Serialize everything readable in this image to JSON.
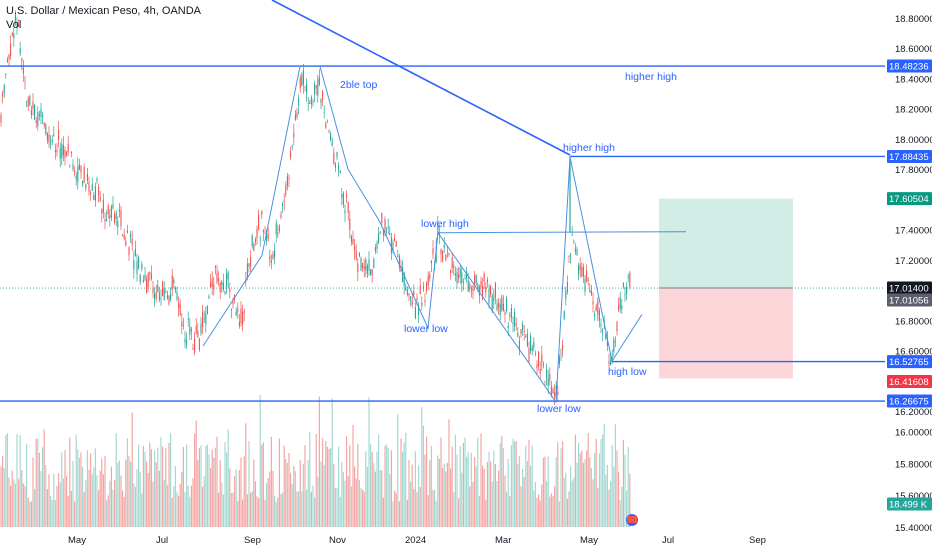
{
  "header": {
    "title": "U.S. Dollar / Mexican Peso, 4h, OANDA",
    "volume_label": "Vol"
  },
  "colors": {
    "up": "#26a69a",
    "down": "#ef5350",
    "trendline": "#2962ff",
    "pattern": "#4a90e2",
    "current_price": "#131722",
    "target_zone": "#d1ede6",
    "stop_zone": "#fcd7da"
  },
  "chart_data": {
    "type": "candlestick",
    "price_axis": {
      "ticks": [
        "18.80000",
        "18.60000",
        "18.40000",
        "18.20000",
        "18.00000",
        "17.80000",
        "17.60000",
        "17.40000",
        "17.20000",
        "17.00000",
        "16.80000",
        "16.60000",
        "16.40000",
        "16.20000",
        "16.00000",
        "15.80000",
        "15.60000",
        "15.40000"
      ],
      "range": [
        15.38,
        18.95
      ]
    },
    "time_axis": {
      "ticks": [
        "May",
        "Jul",
        "Sep",
        "Nov",
        "2024",
        "Mar",
        "May",
        "Jul",
        "Sep"
      ]
    },
    "price_labels": [
      {
        "value": "18.48236",
        "style": "blue"
      },
      {
        "value": "17.88435",
        "style": "blue"
      },
      {
        "value": "17.60504",
        "style": "green"
      },
      {
        "value": "17.01400",
        "style": "dark"
      },
      {
        "value": "17.01056",
        "style": "gray"
      },
      {
        "value": "16.52765",
        "style": "blue"
      },
      {
        "value": "16.41608",
        "style": "red"
      },
      {
        "value": "16.26675",
        "style": "blue"
      },
      {
        "value": "18.499 K",
        "style": "teal"
      }
    ],
    "horizontal_levels": [
      18.48236,
      17.88435,
      16.52765,
      16.26675
    ],
    "annotations": [
      {
        "text": "2ble top"
      },
      {
        "text": "higher high"
      },
      {
        "text": "higher high"
      },
      {
        "text": "lower high"
      },
      {
        "text": "lower low"
      },
      {
        "text": "lower low"
      },
      {
        "text": "high low"
      }
    ],
    "pattern_path": [
      {
        "month": "Jul",
        "price": 16.63
      },
      {
        "month": "Aug",
        "price": 17.23
      },
      {
        "month": "Oct",
        "price": 18.48
      },
      {
        "month": "Nov",
        "price": 17.7
      },
      {
        "month": "Dec",
        "price": 16.75
      },
      {
        "month": "Jan",
        "price": 17.38
      },
      {
        "month": "Apr",
        "price": 16.26
      },
      {
        "month": "Apr",
        "price": 17.88
      },
      {
        "month": "May",
        "price": 16.53
      },
      {
        "month": "Jun",
        "price": 16.84
      }
    ],
    "position": {
      "entry": 17.014,
      "target": 17.60504,
      "stop": 16.41608
    }
  }
}
